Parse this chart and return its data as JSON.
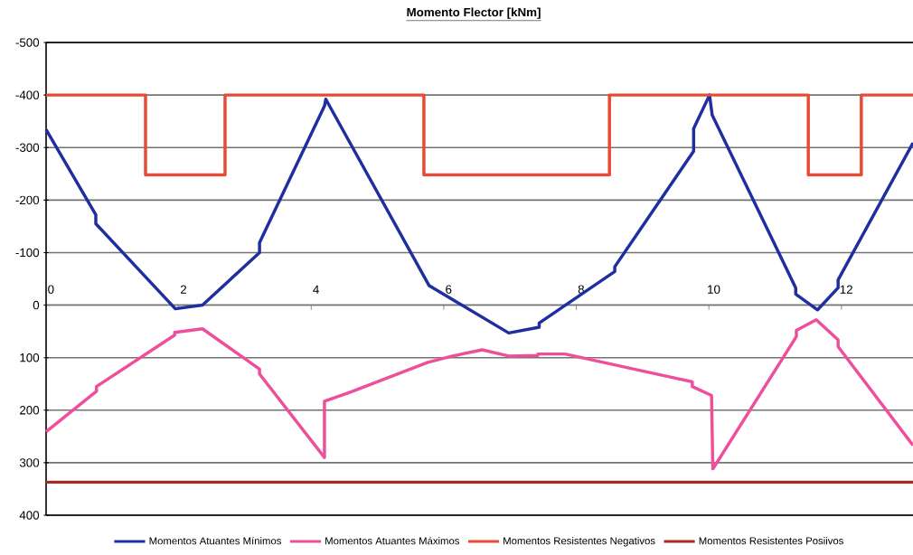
{
  "chart_data": {
    "type": "line",
    "title": "Momento Flector [kNm]",
    "xlim": [
      0,
      13.08
    ],
    "xticks": [
      0,
      2,
      4,
      6,
      8,
      10,
      12
    ],
    "ylim": [
      400,
      -500
    ],
    "yticks": [
      -500,
      -400,
      -300,
      -200,
      -100,
      0,
      100,
      200,
      300,
      400
    ],
    "grid": "y",
    "legend": "bottom",
    "series": [
      {
        "name": "Momentos Atuantes Mínimos",
        "color": "#1f2fa0",
        "x": [
          0,
          0.75,
          0.75,
          1.95,
          2.36,
          3.22,
          3.22,
          4.2,
          4.22,
          5.78,
          6.98,
          7.44,
          7.44,
          8.58,
          8.58,
          9.77,
          9.77,
          10.01,
          10.05,
          11.31,
          11.31,
          11.64,
          11.95,
          11.95,
          13.08
        ],
        "values": [
          -334,
          -172,
          -155,
          7,
          0,
          -100,
          -119,
          -379,
          -392,
          -37,
          53,
          42,
          34,
          -64,
          -73,
          -293,
          -336,
          -400,
          -362,
          -33,
          -21,
          9,
          -33,
          -48,
          -309
        ]
      },
      {
        "name": "Momentos Atuantes Máximos",
        "color": "#ee4f9b",
        "x": [
          0,
          0.76,
          0.76,
          1.94,
          1.94,
          2.36,
          3.22,
          3.22,
          4.2,
          4.2,
          4.58,
          5.76,
          6.13,
          6.58,
          6.98,
          7.42,
          7.42,
          7.83,
          8.95,
          9.75,
          9.75,
          10.04,
          10.06,
          11.32,
          11.32,
          11.62,
          11.95,
          11.95,
          13.08
        ],
        "values": [
          241,
          164,
          155,
          57,
          52,
          45,
          122,
          131,
          290,
          183,
          166,
          109,
          97,
          85,
          97,
          96,
          93,
          93,
          124,
          146,
          155,
          172,
          312,
          60,
          48,
          28,
          66,
          79,
          267
        ]
      },
      {
        "name": "Momentos Resistentes Negativos",
        "color": "#e84a35",
        "x": [
          0,
          1.5,
          1.5,
          2.7,
          2.7,
          5.7,
          5.7,
          8.5,
          8.5,
          11.5,
          11.5,
          12.3,
          12.3,
          13.08
        ],
        "values": [
          -400,
          -400,
          -248,
          -248,
          -400,
          -400,
          -248,
          -248,
          -400,
          -400,
          -248,
          -248,
          -400,
          -400
        ]
      },
      {
        "name": "Momentos Resistentes Posiivos",
        "color": "#a52a1f",
        "x": [
          0,
          13.08
        ],
        "values": [
          337,
          337
        ]
      }
    ]
  }
}
